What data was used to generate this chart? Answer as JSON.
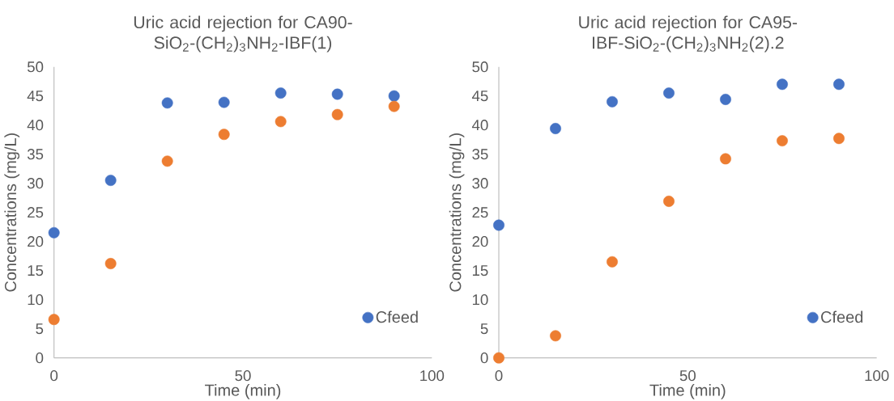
{
  "chart_data": [
    {
      "type": "scatter",
      "title": "Uric acid rejection for CA90-SiO$_{2}$-(CH$_{2}$)$_{3}$NH$_{2}$-IBF(1)",
      "xlabel": "Time (min)",
      "ylabel": "Concentrations (mg/L)",
      "x": [
        0,
        15,
        30,
        45,
        60,
        75,
        90
      ],
      "series": [
        {
          "name": "Cfeed",
          "color": "#4472c4",
          "values": [
            21.5,
            30.5,
            43.8,
            43.9,
            45.5,
            45.3,
            45.0
          ]
        },
        {
          "color": "#ed7d31",
          "values": [
            6.6,
            16.2,
            33.8,
            38.4,
            40.6,
            41.8,
            43.2
          ]
        }
      ],
      "xlim": [
        0,
        100
      ],
      "xticks": [
        0,
        50,
        100
      ],
      "ylim": [
        0,
        50
      ],
      "yticks": [
        0,
        5,
        10,
        15,
        20,
        25,
        30,
        35,
        40,
        45,
        50
      ],
      "grid": false,
      "legend": "bottom right"
    },
    {
      "type": "scatter",
      "title": "Uric acid rejection for CA95-IBF-SiO$_{2}$-(CH$_{2}$)$_{3}$NH$_{2}$(2).2",
      "xlabel": "Time (min)",
      "ylabel": "Concentrations (mg/L)",
      "x": [
        0,
        15,
        30,
        45,
        60,
        75,
        90
      ],
      "series": [
        {
          "name": "Cfeed",
          "color": "#4472c4",
          "values": [
            22.8,
            39.4,
            44.0,
            45.5,
            44.4,
            47.0,
            47.0
          ]
        },
        {
          "color": "#ed7d31",
          "values": [
            0,
            3.8,
            16.5,
            26.9,
            34.2,
            37.3,
            37.7
          ]
        }
      ],
      "xlim": [
        0,
        100
      ],
      "xticks": [
        0,
        50,
        100
      ],
      "ylim": [
        0,
        50
      ],
      "yticks": [
        0,
        5,
        10,
        15,
        20,
        25,
        30,
        35,
        40,
        45,
        50
      ],
      "grid": false,
      "legend": "bottom right"
    }
  ]
}
